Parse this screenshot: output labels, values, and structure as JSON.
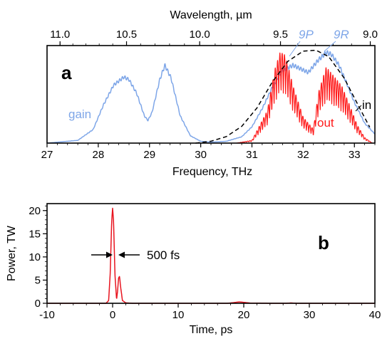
{
  "colors": {
    "gain": "#7ea6e8",
    "out": "#ff1a1a",
    "in": "#000000",
    "pulse": "#e8141f"
  },
  "chart_data": [
    {
      "type": "line",
      "panel": "a",
      "xlabel": "Frequency, THz",
      "xlim": [
        27,
        33.4
      ],
      "x_ticks": [
        "27",
        "28",
        "29",
        "30",
        "31",
        "32",
        "33"
      ],
      "top_axis_label": "Wavelength, µm",
      "top_ticks": [
        "11.0",
        "10.5",
        "10.0",
        "9.5",
        "9.0"
      ],
      "top_tick_wavelengths_um": [
        11.0,
        10.5,
        10.0,
        9.5,
        9.0
      ],
      "ylim": [
        0,
        1.05
      ],
      "y_ticks_shown": false,
      "series": [
        {
          "name": "gain",
          "style": "solid, fine comb structure",
          "x": [
            27.0,
            27.6,
            27.9,
            28.1,
            28.3,
            28.5,
            28.6,
            28.75,
            28.9,
            28.97,
            29.05,
            29.2,
            29.3,
            29.42,
            29.6,
            29.8,
            30.0,
            30.2,
            30.5,
            30.8,
            31.0,
            31.2,
            31.4,
            31.6,
            31.8,
            31.95,
            32.1,
            32.3,
            32.45,
            32.55,
            32.7,
            32.85,
            33.0,
            33.2,
            33.4
          ],
          "y": [
            0.0,
            0.03,
            0.15,
            0.42,
            0.64,
            0.73,
            0.7,
            0.55,
            0.3,
            0.25,
            0.34,
            0.7,
            0.86,
            0.72,
            0.3,
            0.08,
            0.02,
            0.01,
            0.02,
            0.07,
            0.18,
            0.38,
            0.62,
            0.8,
            0.86,
            0.82,
            0.78,
            0.92,
            1.0,
            0.98,
            0.86,
            0.66,
            0.45,
            0.22,
            0.1
          ]
        },
        {
          "name": "in",
          "style": "dashed",
          "x": [
            29.9,
            30.2,
            30.5,
            30.8,
            31.1,
            31.4,
            31.7,
            32.0,
            32.25,
            32.5,
            32.8,
            33.1,
            33.3
          ],
          "y": [
            0.0,
            0.02,
            0.07,
            0.18,
            0.38,
            0.66,
            0.88,
            0.99,
            1.0,
            0.93,
            0.7,
            0.38,
            0.17
          ]
        },
        {
          "name": "out",
          "style": "solid, dense spectral fringes",
          "x": [
            30.7,
            31.0,
            31.3,
            31.45,
            31.55,
            31.65,
            31.8,
            32.0,
            32.2,
            32.3,
            32.45,
            32.6,
            32.75,
            32.9,
            33.05,
            33.2,
            33.35
          ],
          "y": [
            0.0,
            0.03,
            0.35,
            0.8,
            0.98,
            0.95,
            0.62,
            0.28,
            0.15,
            0.55,
            0.82,
            0.72,
            0.62,
            0.42,
            0.2,
            0.06,
            0.0
          ]
        }
      ],
      "annotations": [
        "gain",
        "in",
        "out",
        "9P",
        "9R"
      ],
      "panel_label": "a"
    },
    {
      "type": "line",
      "panel": "b",
      "xlabel": "Time, ps",
      "ylabel": "Power, TW",
      "xlim": [
        -10,
        40
      ],
      "ylim": [
        0,
        21.5
      ],
      "x_ticks": [
        "-10",
        "0",
        "10",
        "20",
        "30",
        "40"
      ],
      "y_ticks": [
        "0",
        "5",
        "10",
        "15",
        "20"
      ],
      "series": [
        {
          "name": "",
          "x": [
            -10,
            -1.0,
            -0.6,
            -0.35,
            -0.15,
            0.0,
            0.15,
            0.35,
            0.6,
            0.75,
            0.9,
            1.05,
            1.25,
            1.5,
            2.0,
            3,
            10,
            17.5,
            18.5,
            19.3,
            20.0,
            21,
            24,
            26.5,
            27.2,
            28,
            35,
            40
          ],
          "y": [
            0,
            0,
            0.6,
            7.0,
            17.5,
            20.5,
            17.5,
            6.5,
            0.8,
            2.5,
            5.4,
            5.8,
            3.2,
            0.6,
            0.1,
            0,
            0,
            0,
            0.15,
            0.3,
            0.2,
            0.05,
            0,
            0,
            0.08,
            0,
            0,
            0
          ]
        }
      ],
      "annotations": [
        "500 fs"
      ],
      "panel_label": "b"
    }
  ]
}
